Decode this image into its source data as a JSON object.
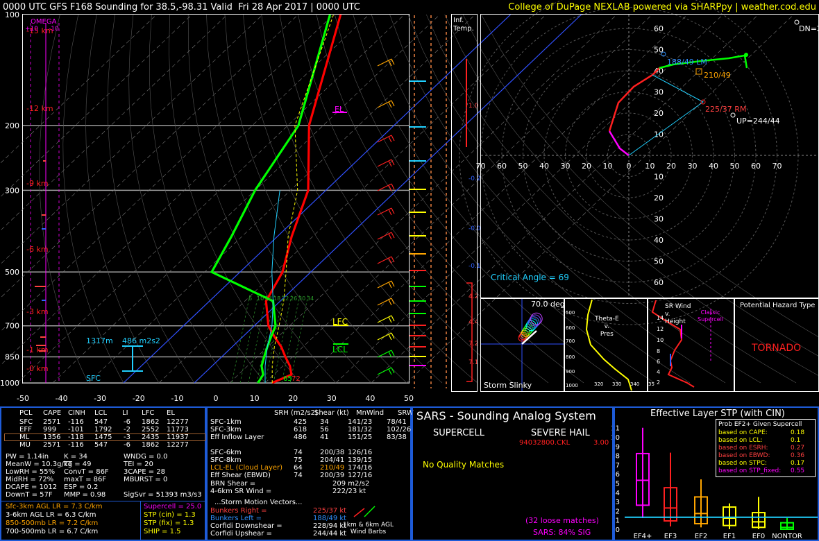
{
  "header": {
    "title": "0000 UTC GFS F168 Sounding for 38.5,-98.31 Valid  Fri 28 Apr 2017 | 0000 UTC",
    "credit": "College of DuPage NEXLAB powered via SHARPpy | weather.cod.edu"
  },
  "skewt": {
    "pressure_labels": [
      "100",
      "200",
      "300",
      "500",
      "700",
      "850",
      "1000"
    ],
    "temp_ticks": [
      "-50",
      "-40",
      "-30",
      "-20",
      "-10",
      "0",
      "10",
      "20",
      "30",
      "40",
      "50"
    ],
    "height_labels": [
      "15 km",
      "12 km",
      "9 km",
      "6 km",
      "3 km",
      "1 km",
      "0 km"
    ],
    "omega_title": "OMEGA",
    "omega_scale": [
      "+10",
      "-10"
    ],
    "el_label": "EL",
    "lfc_label": "LFC",
    "lcl_label": "LCL",
    "sfc_label": "SFC",
    "eff_inflow_base": "1317m",
    "eff_inflow_srh": "486 m2s2",
    "sfc_temp": "72",
    "sfc_dwpt": "65",
    "mixing_ratio_labels": [
      "6",
      "10",
      "14",
      "18",
      "22",
      "26",
      "30",
      "34"
    ],
    "inf_temp_label": "Inf.\nTemp.",
    "inf_temp_values": [
      "1.0",
      "-0.2",
      "-0.0",
      "-0.1",
      "4.2",
      "4.4",
      "7.2",
      "7.1"
    ]
  },
  "hodograph": {
    "ring_labels": [
      "10",
      "20",
      "30",
      "40",
      "50",
      "60"
    ],
    "axis_labels": [
      "0",
      "10",
      "20",
      "30",
      "40",
      "50",
      "60",
      "70"
    ],
    "lm_label": "188/49 LM",
    "mean_label": "210/49",
    "rm_label": "225/37 RM",
    "up_label": "UP=244/44",
    "dn_label": "DN=2",
    "critical_angle": "Critical Angle = 69"
  },
  "slinky": {
    "title": "70.0 deg",
    "label": "Storm Slinky"
  },
  "thetae": {
    "title": "Theta-E\nv.\nPres",
    "yticks": [
      "500",
      "600",
      "700",
      "800",
      "900",
      "1000"
    ],
    "xticks": [
      "320",
      "330",
      "340",
      "35"
    ]
  },
  "srwind": {
    "title": "SR Wind\nv.\nHeight",
    "label": "Classic\nSupercell",
    "yticks": [
      "14",
      "12",
      "10",
      "8",
      "6",
      "4",
      "2"
    ]
  },
  "hazard": {
    "title": "Potential Hazard Type",
    "value": "TORNADO"
  },
  "parcels": {
    "headers": [
      "PCL",
      "CAPE",
      "CINH",
      "LCL",
      "LI",
      "LFC",
      "EL"
    ],
    "rows": [
      [
        "SFC",
        "2571",
        "-116",
        "547",
        "-6",
        "1862",
        "12277"
      ],
      [
        "EFF",
        "999",
        "-101",
        "1792",
        "-2",
        "2552",
        "11773"
      ],
      [
        "ML",
        "1356",
        "-118",
        "1475",
        "-3",
        "2435",
        "11937"
      ],
      [
        "MU",
        "2571",
        "-116",
        "547",
        "-6",
        "1862",
        "12277"
      ]
    ]
  },
  "indices": [
    [
      "PW = 1.14in",
      "K = 34",
      "WNDG = 0.0"
    ],
    [
      "MeanW = 10.3g/kg",
      "TT = 49",
      "TEI = 20"
    ],
    [
      "LowRH = 55%",
      "ConvT = 86F",
      "3CAPE = 28"
    ],
    [
      "MidRH = 72%",
      "maxT = 86F",
      "MBURST = 0"
    ],
    [
      "DCAPE = 1012",
      "ESP = 0.2",
      ""
    ],
    [
      "DownT = 57F",
      "MMP = 0.98",
      "SigSvr = 51393 m3/s3"
    ]
  ],
  "lapse_rates": [
    {
      "text": "Sfc-3km AGL LR = 7.3 C/km",
      "color": "#ffa500"
    },
    {
      "text": "3-6km AGL LR = 6.3 C/km",
      "color": "#ffffff"
    },
    {
      "text": "850-500mb LR = 7.2 C/km",
      "color": "#ffa500"
    },
    {
      "text": "700-500mb LR = 6.7 C/km",
      "color": "#ffffff"
    }
  ],
  "composites": [
    {
      "text": "Supercell = 25.0",
      "color": "#ff00ff"
    },
    {
      "text": "STP (cin) = 1.3",
      "color": "#ffff00"
    },
    {
      "text": "STP (fix) = 1.3",
      "color": "#ffff00"
    },
    {
      "text": "SHIP = 1.5",
      "color": "#ffff00"
    }
  ],
  "kinematics": {
    "headers": [
      "SRH (m2/s2)",
      "Shear (kt)",
      "MnWind",
      "SRW"
    ],
    "rows": [
      [
        "SFC-1km",
        "425",
        "34",
        "141/23",
        "78/41"
      ],
      [
        "SFC-3km",
        "618",
        "56",
        "181/32",
        "102/26"
      ],
      [
        "Eff Inflow Layer",
        "486",
        "41",
        "151/25",
        "83/38"
      ],
      [
        "",
        "",
        "",
        "",
        ""
      ],
      [
        "SFC-6km",
        "74",
        "200/38",
        "126/16",
        ""
      ],
      [
        "SFC-8km",
        "75",
        "204/41",
        "139/15",
        ""
      ],
      [
        "LCL-EL (Cloud Layer)",
        "64",
        "210/49",
        "174/16",
        ""
      ],
      [
        "Eff Shear (EBWD)",
        "74",
        "200/39",
        "127/16",
        ""
      ]
    ],
    "brn": "BRN Shear =",
    "brn_val": "209 m2/s2",
    "wind46": "4-6km SR Wind =",
    "wind46_val": "222/23 kt",
    "storm_title": "...Storm Motion Vectors...",
    "motions": [
      {
        "label": "Bunkers Right =",
        "value": "225/37 kt",
        "color": "#ff4040"
      },
      {
        "label": "Bunkers Left =",
        "value": "188/49 kt",
        "color": "#3090ff"
      },
      {
        "label": "Corfidi Downshear =",
        "value": "228/94 kt",
        "color": "#ffffff"
      },
      {
        "label": "Corfidi Upshear =",
        "value": "244/44 kt",
        "color": "#ffffff"
      }
    ],
    "barb_caption": "1km & 6km AGL\nWind Barbs"
  },
  "sars": {
    "title": "SARS - Sounding Analog System",
    "supercell": "SUPERCELL",
    "hail": "SEVERE HAIL",
    "hail_match": "94032800.CKL",
    "hail_size": "3.00",
    "no_match": "No Quality Matches",
    "loose": "(32 loose matches)",
    "sig": "SARS: 84% SIG"
  },
  "stp": {
    "title": "Effective Layer STP (with CIN)",
    "prob_title": "Prob EF2+ Given Supercell",
    "probs": [
      {
        "label": "based on CAPE:",
        "value": "0.18",
        "color": "#ffff00"
      },
      {
        "label": "based on LCL:",
        "value": "0.1",
        "color": "#ffff00"
      },
      {
        "label": "based on ESRH:",
        "value": "0.27",
        "color": "#ff4040"
      },
      {
        "label": "based on EBWD:",
        "value": "0.36",
        "color": "#ff4040"
      },
      {
        "label": "based on STPC:",
        "value": "0.17",
        "color": "#ffff00"
      },
      {
        "label": "based on STP_fixed:",
        "value": "0.55",
        "color": "#ff00ff"
      }
    ],
    "yticks": [
      "0",
      "1",
      "2",
      "3",
      "4",
      "5",
      "6",
      "7",
      "8",
      "9",
      "10",
      "11"
    ],
    "categories": [
      "EF4+",
      "EF3",
      "EF2",
      "EF1",
      "EF0",
      "NONTOR"
    ]
  },
  "chart_data": [
    {
      "type": "line",
      "title": "",
      "xlabel": "",
      "ylabel": "",
      "ylim": [
        1000,
        100
      ],
      "xlim": [
        -50,
        50
      ],
      "series": [
        {
          "name": "",
          "color": "#ff0000",
          "pressure": [
            1000,
            950,
            900,
            850,
            800,
            750,
            700,
            600,
            500,
            400,
            300,
            200,
            100
          ],
          "values": [
            22,
            25,
            22,
            18,
            14,
            9,
            4,
            -4,
            -8,
            -16,
            -25,
            -44,
            -68
          ]
        },
        {
          "name": "",
          "color": "#00ff00",
          "pressure": [
            1000,
            950,
            900,
            850,
            800,
            750,
            700,
            600,
            500,
            400,
            300,
            200,
            100
          ],
          "values": [
            18,
            17,
            14,
            12,
            10,
            8,
            6,
            -2,
            -28,
            -33,
            -40,
            -47,
            -71
          ]
        }
      ]
    },
    {
      "type": "box",
      "title": "",
      "categories": [
        "EF4+",
        "EF3",
        "EF2",
        "EF1",
        "EF0",
        "NONTOR"
      ],
      "series": [
        {
          "name": "",
          "min": [
            1.2,
            0.3,
            0.2,
            0.0,
            0.0,
            0.0
          ],
          "q1": [
            2.6,
            0.9,
            0.6,
            0.4,
            0.2,
            0.0
          ],
          "median": [
            5.3,
            2.3,
            1.7,
            1.2,
            0.8,
            0.2
          ],
          "q3": [
            8.2,
            4.5,
            3.5,
            2.4,
            1.8,
            0.7
          ],
          "max": [
            11.0,
            8.3,
            5.4,
            2.8,
            3.5,
            1.2
          ]
        }
      ],
      "marker_value": 1.3,
      "ylim": [
        0,
        11.5
      ]
    }
  ]
}
